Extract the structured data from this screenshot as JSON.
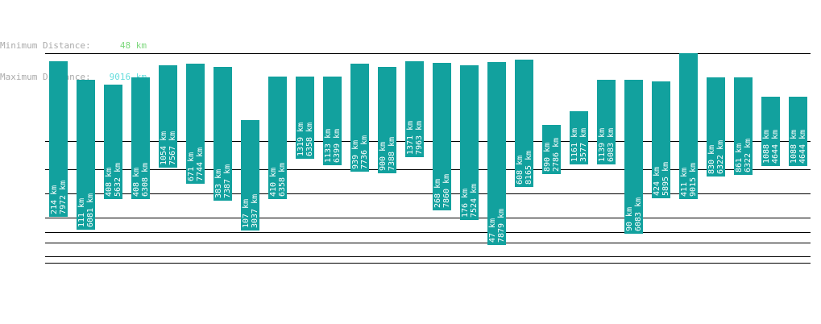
{
  "stats": {
    "min_label": "Minimum Distance:",
    "min_value": "48 km",
    "max_label": "Maximum Distance:",
    "max_value": "9016 km"
  },
  "colors": {
    "bar": "#12a19e",
    "min_value": "#7ed87e",
    "max_value": "#66dddd",
    "label": "#aaaaaa"
  },
  "chart_data": {
    "type": "bar",
    "series": [
      {
        "start": 214,
        "end": 7972
      },
      {
        "start": 111,
        "end": 6081
      },
      {
        "start": 408,
        "end": 5632
      },
      {
        "start": 408,
        "end": 6308
      },
      {
        "start": 1054,
        "end": 7567
      },
      {
        "start": 671,
        "end": 7744
      },
      {
        "start": 383,
        "end": 7387
      },
      {
        "start": 107,
        "end": 3037
      },
      {
        "start": 410,
        "end": 6358
      },
      {
        "start": 1319,
        "end": 6358
      },
      {
        "start": 1133,
        "end": 6399
      },
      {
        "start": 939,
        "end": 7736
      },
      {
        "start": 900,
        "end": 7388
      },
      {
        "start": 1371,
        "end": 7963
      },
      {
        "start": 268,
        "end": 7860
      },
      {
        "start": 176,
        "end": 7524
      },
      {
        "start": 47,
        "end": 7879
      },
      {
        "start": 608,
        "end": 8165
      },
      {
        "start": 890,
        "end": 2786
      },
      {
        "start": 1161,
        "end": 3577
      },
      {
        "start": 1139,
        "end": 6083
      },
      {
        "start": 90,
        "end": 6083
      },
      {
        "start": 424,
        "end": 5895
      },
      {
        "start": 411,
        "end": 9015
      },
      {
        "start": 830,
        "end": 6322
      },
      {
        "start": 861,
        "end": 6322
      },
      {
        "start": 1088,
        "end": 4644
      },
      {
        "start": 1088,
        "end": 4644
      }
    ],
    "unit": "km",
    "grid": true
  }
}
